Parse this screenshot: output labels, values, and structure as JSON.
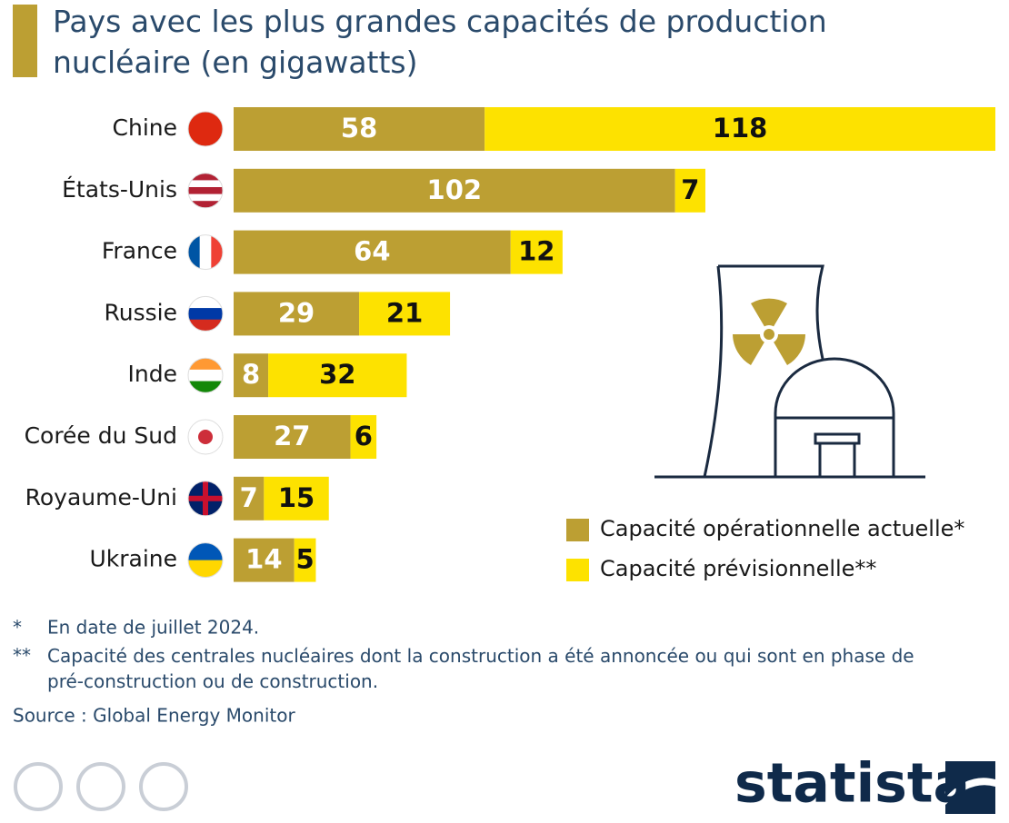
{
  "chart_data": {
    "type": "stacked-bar-horizontal",
    "title": "Pays avec les plus grandes capacités de production nucléaire (en gigawatts)",
    "categories": [
      "Chine",
      "États-Unis",
      "France",
      "Russie",
      "Inde",
      "Corée du Sud",
      "Royaume-Uni",
      "Ukraine"
    ],
    "series": [
      {
        "name": "Capacité opérationnelle actuelle*",
        "color": "#bc9f33",
        "values": [
          58,
          102,
          64,
          29,
          8,
          27,
          7,
          14
        ]
      },
      {
        "name": "Capacité prévisionnelle**",
        "color": "#fde200",
        "values": [
          118,
          7,
          12,
          21,
          32,
          6,
          15,
          5
        ]
      }
    ],
    "notes": [
      [
        "*",
        "En date de juillet 2024."
      ],
      [
        "**",
        "Capacité des centrales nucléaires dont la construction a été annoncée ou qui sont en phase de pré-construction ou de construction."
      ]
    ],
    "source": "Source : Global Energy Monitor",
    "logo": "statista"
  }
}
